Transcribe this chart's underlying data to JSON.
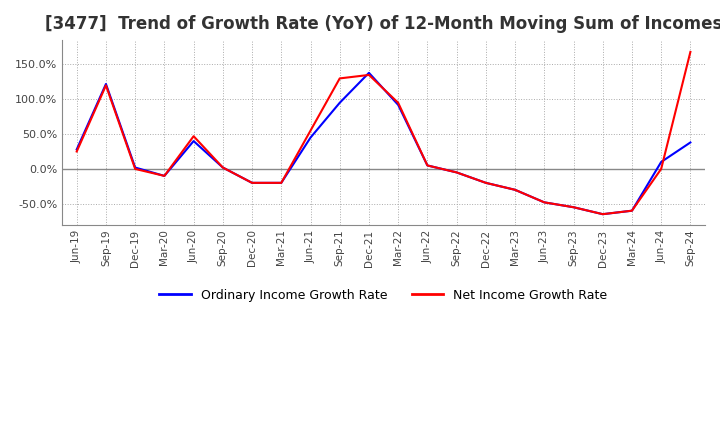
{
  "title": "[3477]  Trend of Growth Rate (YoY) of 12-Month Moving Sum of Incomes",
  "title_fontsize": 12,
  "ylim": [
    -80,
    185
  ],
  "yticks": [
    -50.0,
    0.0,
    50.0,
    100.0,
    150.0
  ],
  "legend_labels": [
    "Ordinary Income Growth Rate",
    "Net Income Growth Rate"
  ],
  "x_labels": [
    "Jun-19",
    "Sep-19",
    "Dec-19",
    "Mar-20",
    "Jun-20",
    "Sep-20",
    "Dec-20",
    "Mar-21",
    "Jun-21",
    "Sep-21",
    "Dec-21",
    "Mar-22",
    "Jun-22",
    "Sep-22",
    "Dec-22",
    "Mar-23",
    "Jun-23",
    "Sep-23",
    "Dec-23",
    "Mar-24",
    "Jun-24",
    "Sep-24"
  ],
  "ordinary_income_growth": [
    28,
    122,
    2,
    -10,
    40,
    2,
    -20,
    -20,
    45,
    95,
    138,
    92,
    5,
    -5,
    -20,
    -30,
    -48,
    -55,
    -65,
    -60,
    10,
    38
  ],
  "net_income_growth": [
    25,
    120,
    0,
    -10,
    47,
    2,
    -20,
    -20,
    55,
    130,
    135,
    95,
    5,
    -5,
    -20,
    -30,
    -48,
    -55,
    -65,
    -60,
    0,
    168
  ],
  "ordinary_color": "#0000ff",
  "net_color": "#ff0000",
  "line_width": 1.5,
  "background_color": "#ffffff",
  "grid_color": "#aaaaaa",
  "zero_line_color": "#888888",
  "tick_color": "#444444",
  "title_color": "#333333",
  "spine_color": "#888888"
}
